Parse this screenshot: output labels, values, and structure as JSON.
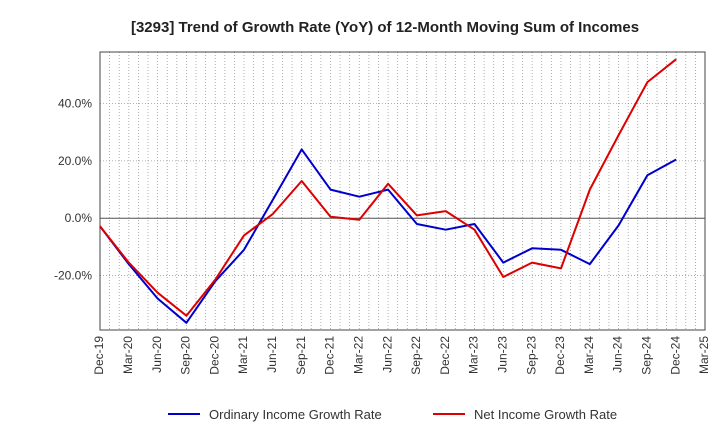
{
  "chart_data": {
    "type": "line",
    "title": "[3293]  Trend of Growth Rate (YoY) of 12-Month Moving Sum of Incomes",
    "xlabel": "",
    "ylabel": "",
    "x": [
      "Dec-19",
      "Mar-20",
      "Jun-20",
      "Sep-20",
      "Dec-20",
      "Mar-21",
      "Jun-21",
      "Sep-21",
      "Dec-21",
      "Mar-22",
      "Jun-22",
      "Sep-22",
      "Dec-22",
      "Mar-23",
      "Jun-23",
      "Sep-23",
      "Dec-23",
      "Mar-24",
      "Jun-24",
      "Sep-24",
      "Dec-24",
      "Mar-25"
    ],
    "ylim": [
      -39,
      58
    ],
    "yticks": [
      -20,
      0,
      20,
      40
    ],
    "ytick_labels": [
      "-20.0%",
      "0.0%",
      "20.0%",
      "40.0%"
    ],
    "grid": true,
    "legend_position": "bottom",
    "series": [
      {
        "name": "Ordinary Income Growth Rate",
        "color": "#0000cc",
        "values": [
          -2.8,
          -16,
          -28,
          -36.5,
          -22,
          -11,
          6.5,
          24,
          10,
          7.5,
          10,
          -2,
          -4,
          -2,
          -15.5,
          -10.5,
          -11,
          -16,
          -2.5,
          15,
          20.5,
          null
        ]
      },
      {
        "name": "Net Income Growth Rate",
        "color": "#dd0000",
        "values": [
          -2.8,
          -15.5,
          -26,
          -34,
          -21.5,
          -6,
          1.5,
          13,
          0.5,
          -0.5,
          12,
          1,
          2.5,
          -4,
          -20.5,
          -15.5,
          -17.5,
          10,
          29,
          47.5,
          55.5,
          null
        ]
      }
    ]
  }
}
